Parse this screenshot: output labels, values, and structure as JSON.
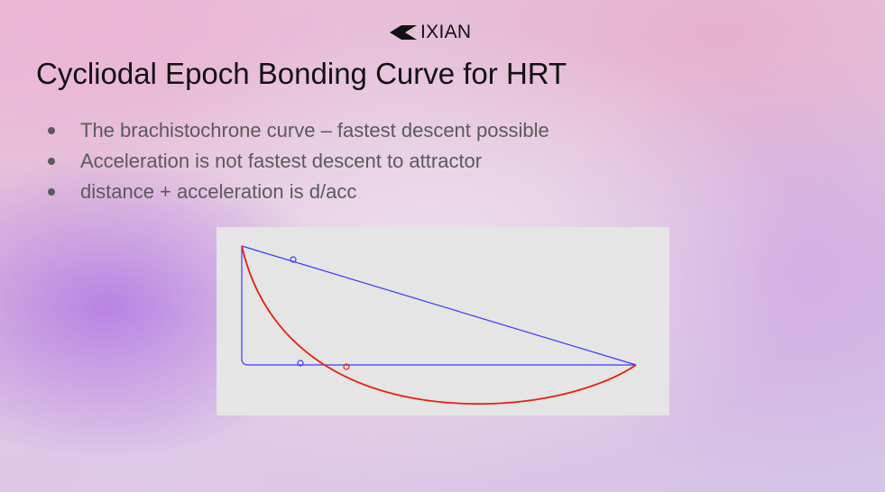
{
  "slide": {
    "logo": {
      "text": "IXIAN",
      "icon": "ixian-chevron-logo-icon"
    },
    "title": "Cycliodal Epoch Bonding Curve for HRT",
    "bullets": [
      "The brachistochrone curve – fastest descent possible",
      "Acceleration is not fastest descent to attractor",
      "distance + acceleration is d/acc"
    ],
    "figure": {
      "description_icon": "brachistochrone-diagram",
      "colors": {
        "background": "#e5e5e5",
        "lines": "#3a3aff",
        "curve": "#e8200a"
      }
    }
  }
}
